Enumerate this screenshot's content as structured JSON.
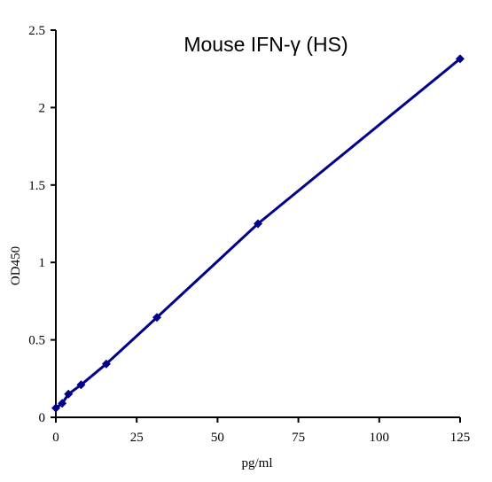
{
  "chart_data": {
    "type": "line",
    "title": "Mouse IFN-γ (HS)",
    "x_label": "pg/ml",
    "y_label": "OD450",
    "x": [
      0,
      1.95,
      3.9,
      7.8,
      15.6,
      31.25,
      62.5,
      125
    ],
    "series": [
      {
        "color": "#00008b",
        "values": [
          0.06,
          0.09,
          0.15,
          0.21,
          0.345,
          0.645,
          1.25,
          2.315
        ]
      }
    ],
    "xlim": [
      0,
      125
    ],
    "xticks": [
      0,
      25,
      50,
      75,
      100,
      125
    ],
    "ylim": [
      0,
      2.5
    ],
    "yticks": [
      0,
      0.5,
      1,
      1.5,
      2,
      2.5
    ],
    "grid": false,
    "marker": "diamond"
  }
}
